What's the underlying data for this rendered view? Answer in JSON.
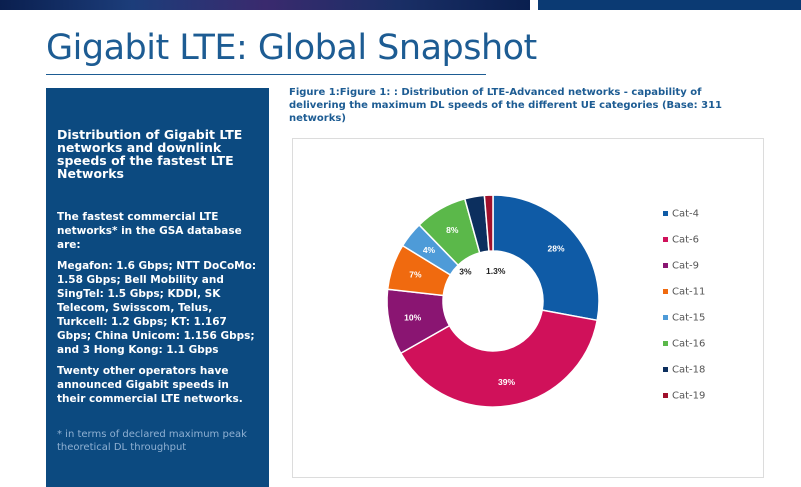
{
  "page": {
    "title": "Gigabit LTE: Global Snapshot"
  },
  "sidebar": {
    "heading": "Distribution of Gigabit LTE networks and downlink speeds of the fastest LTE Networks",
    "intro": "The fastest commercial LTE networks* in the GSA database are:",
    "operators": "Megafon: 1.6 Gbps; NTT DoCoMo: 1.58 Gbps; Bell Mobility and SingTel: 1.5 Gbps; KDDI, SK Telecom, Swisscom, Telus, Turkcell: 1.2 Gbps; KT: 1.167 Gbps; China Unicom: 1.156 Gbps; and 3 Hong Kong: 1.1 Gbps",
    "others": "Twenty other operators have announced Gigabit speeds in their commercial LTE networks.",
    "footnote": "* in terms of declared maximum peak theoretical DL throughput"
  },
  "figure": {
    "caption": "Figure 1:Figure 1: : Distribution of LTE-Advanced networks - capability of delivering the maximum DL speeds of the different UE categories (Base: 311 networks)"
  },
  "chart_data": {
    "type": "pie",
    "variant": "donut",
    "title": "",
    "legend_position": "right",
    "categories": [
      "Cat-4",
      "Cat-6",
      "Cat-9",
      "Cat-11",
      "Cat-15",
      "Cat-16",
      "Cat-18",
      "Cat-19"
    ],
    "values": [
      28,
      39,
      10,
      7,
      4,
      8,
      3,
      1.3
    ],
    "data_labels": [
      "28%",
      "39%",
      "10%",
      "7%",
      "4%",
      "8%",
      "3%",
      "1.3%"
    ],
    "colors": [
      "#0f5ba6",
      "#d0115a",
      "#8a1572",
      "#f06a0f",
      "#4e9bd8",
      "#5bb84a",
      "#0c2f5e",
      "#a0102c"
    ]
  }
}
